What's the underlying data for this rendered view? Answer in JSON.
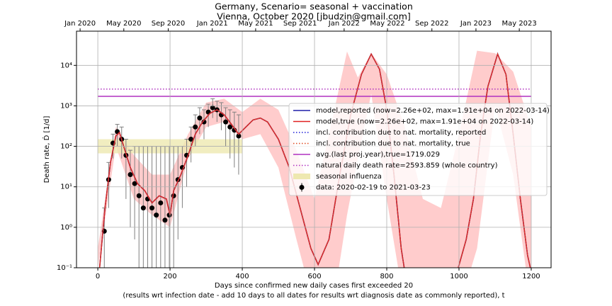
{
  "chart_data": {
    "type": "line",
    "title": [
      "Germany, Scenario= seasonal + vaccination",
      "Vienna, October 2020 [jbudzin@gmail.com]"
    ],
    "xlabel": [
      "Days since confirmed new daily cases first exceeded 20",
      "(results wrt infection date - add 10 days to all dates for results wrt diagnosis date as commonly reported), t"
    ],
    "ylabel": "Death rate, Ḋ [1/d]",
    "xlim": [
      -59,
      1255
    ],
    "ylim": [
      0.1,
      70000
    ],
    "log_y": true,
    "grid": true,
    "legend": "center right",
    "xticks": [
      0,
      200,
      400,
      600,
      800,
      1000,
      1200
    ],
    "yticks": [
      {
        "value": 0.1,
        "label": "10⁻¹"
      },
      {
        "value": 1,
        "label": "10⁰"
      },
      {
        "value": 10,
        "label": "10¹"
      },
      {
        "value": 100,
        "label": "10²"
      },
      {
        "value": 1000,
        "label": "10³"
      },
      {
        "value": 10000,
        "label": "10⁴"
      }
    ],
    "x2ticks": [
      {
        "value": -49,
        "label": "Jan 2020"
      },
      {
        "value": 72,
        "label": "May 2020"
      },
      {
        "value": 195,
        "label": "Sep 2020"
      },
      {
        "value": 317,
        "label": "Jan 2021"
      },
      {
        "value": 437,
        "label": "May 2021"
      },
      {
        "value": 560,
        "label": "Sep 2021"
      },
      {
        "value": 682,
        "label": "Jan 2022"
      },
      {
        "value": 802,
        "label": "May 2022"
      },
      {
        "value": 925,
        "label": "Sep 2022"
      },
      {
        "value": 1047,
        "label": "Jan 2023"
      },
      {
        "value": 1167,
        "label": "May 2023"
      }
    ],
    "ci": {
      "color": "#ffcccc",
      "x": [
        0,
        50,
        100,
        150,
        200,
        250,
        300,
        350,
        400,
        450,
        500,
        550,
        600,
        650,
        690,
        720,
        757,
        800,
        850,
        900,
        950,
        1000,
        1050,
        1100,
        1150,
        1200
      ],
      "upper": [
        0.3,
        300,
        60,
        20,
        20,
        200,
        1200,
        1500,
        700,
        1500,
        800,
        80,
        5,
        500,
        22000,
        5000,
        20000,
        6000,
        300,
        5,
        3,
        200,
        23000,
        20000,
        7000,
        300
      ],
      "lower": [
        0.1,
        100,
        5,
        2,
        1,
        50,
        300,
        400,
        150,
        200,
        30,
        0.5,
        0.01,
        0.01,
        2,
        50,
        2000,
        5,
        0.01,
        0.01,
        0.01,
        0.01,
        0.3,
        1000,
        20,
        0.01
      ]
    },
    "x": [
      5,
      20,
      35,
      50,
      60,
      75,
      90,
      110,
      130,
      150,
      170,
      190,
      200,
      210,
      230,
      250,
      270,
      290,
      310,
      330,
      350,
      370,
      390,
      410,
      430,
      450,
      470,
      500,
      530,
      560,
      590,
      610,
      640,
      670,
      700,
      730,
      757,
      780,
      800,
      820,
      840,
      850,
      900,
      995,
      1020,
      1040,
      1060,
      1080,
      1107,
      1130,
      1150,
      1170,
      1190,
      1200
    ],
    "series": [
      {
        "name": "model,reported (now=2.26e+02, max=1.91e+04 on 2022-03-14)",
        "color": "#1f1fa8",
        "style": "solid",
        "values": [
          0.1,
          3,
          40,
          180,
          220,
          80,
          30,
          12,
          8,
          4,
          6,
          5,
          2,
          8,
          20,
          60,
          200,
          400,
          650,
          800,
          600,
          350,
          200,
          300,
          450,
          500,
          400,
          150,
          30,
          3,
          0.3,
          0.12,
          0.5,
          20,
          600,
          6000,
          19100,
          8000,
          800,
          20,
          0.3,
          0.08,
          null,
          0.08,
          0.5,
          5,
          200,
          3000,
          19100,
          6000,
          200,
          5,
          0.2,
          0.08
        ]
      },
      {
        "name": "model,true (now=2.26e+02, max=1.91e+04 on 2022-03-14)",
        "color": "#e02020",
        "style": "solid",
        "values": [
          0.1,
          3,
          40,
          180,
          220,
          80,
          30,
          12,
          8,
          4,
          6,
          5,
          2,
          8,
          20,
          60,
          200,
          400,
          650,
          800,
          600,
          350,
          200,
          300,
          450,
          500,
          400,
          150,
          30,
          3,
          0.3,
          0.12,
          0.5,
          20,
          600,
          6000,
          19100,
          8000,
          800,
          20,
          0.3,
          0.08,
          null,
          0.08,
          0.5,
          5,
          200,
          3000,
          19100,
          6000,
          200,
          5,
          0.2,
          0.08
        ]
      },
      {
        "name": "incl. contribution due to nat. mortality, reported",
        "color": "#1f1fd8",
        "style": "dotted",
        "values": [
          0.1,
          3,
          40,
          180,
          220,
          80,
          30,
          12,
          8,
          4,
          6,
          5,
          2,
          8,
          20,
          60,
          200,
          400,
          650,
          800,
          600,
          350,
          200,
          300,
          450,
          500,
          400,
          150,
          30,
          3,
          0.3,
          0.12,
          0.5,
          20,
          600,
          6000,
          19100,
          8000,
          800,
          20,
          0.3,
          0.08,
          null,
          0.08,
          0.5,
          5,
          200,
          3000,
          19100,
          6000,
          200,
          5,
          0.2,
          0.08
        ]
      },
      {
        "name": "incl. contribution due to nat. mortality, true",
        "color": "#e04a20",
        "style": "dotted",
        "values": [
          0.1,
          3,
          40,
          180,
          220,
          80,
          30,
          12,
          8,
          4,
          6,
          5,
          2,
          8,
          20,
          60,
          200,
          400,
          650,
          800,
          600,
          350,
          200,
          300,
          450,
          500,
          400,
          150,
          30,
          3,
          0.3,
          0.12,
          0.5,
          20,
          600,
          6000,
          19100,
          8000,
          800,
          20,
          0.3,
          0.08,
          null,
          0.08,
          0.5,
          5,
          200,
          3000,
          19100,
          6000,
          200,
          5,
          0.2,
          0.08
        ]
      }
    ],
    "hlines": [
      {
        "name": "avg.(last proj.year),true=1719.029",
        "color": "#b030c0",
        "style": "solid",
        "value": 1719.029,
        "xrange": [
          0,
          1200
        ]
      },
      {
        "name": "natural daily death rate=2593.859 (whole country)",
        "color": "#b030c0",
        "style": "dotted",
        "value": 2593.859,
        "xrange": [
          0,
          1200
        ]
      }
    ],
    "band": {
      "name": "seasonal influenza",
      "color": "#eee8b0",
      "xrange": [
        0,
        400
      ],
      "yrange": [
        67,
        150
      ]
    },
    "data": {
      "name": "data: 2020-02-19 to 2021-03-23",
      "color": "#000000",
      "error_color": "#808080",
      "x": [
        18,
        30,
        42,
        54,
        66,
        78,
        90,
        102,
        114,
        126,
        138,
        150,
        162,
        174,
        186,
        198,
        210,
        222,
        234,
        246,
        258,
        270,
        282,
        294,
        306,
        318,
        330,
        342,
        354,
        366,
        378,
        390
      ],
      "values": [
        0.8,
        15,
        120,
        230,
        150,
        60,
        20,
        12,
        6,
        3,
        5,
        3,
        2,
        4,
        1.5,
        2,
        6,
        15,
        30,
        60,
        150,
        300,
        500,
        400,
        700,
        900,
        800,
        600,
        400,
        300,
        250,
        180
      ],
      "lower": [
        0.1,
        3,
        50,
        100,
        50,
        5,
        1,
        0.5,
        0.1,
        0.1,
        0.1,
        0.1,
        0.1,
        0.1,
        0.1,
        0.1,
        0.1,
        0.5,
        3,
        10,
        40,
        100,
        200,
        150,
        300,
        500,
        400,
        250,
        100,
        50,
        30,
        20
      ],
      "upper": [
        3,
        40,
        200,
        350,
        300,
        150,
        80,
        100,
        100,
        100,
        100,
        100,
        100,
        100,
        100,
        100,
        100,
        100,
        100,
        150,
        300,
        600,
        900,
        800,
        1100,
        1500,
        1300,
        1200,
        900,
        800,
        700,
        600
      ]
    }
  }
}
